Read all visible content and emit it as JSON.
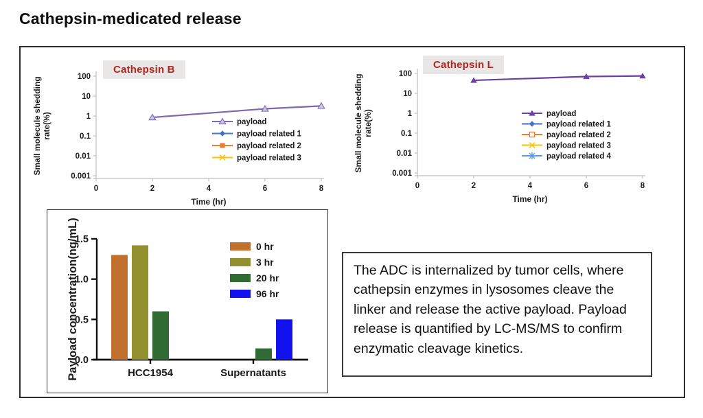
{
  "title": "Cathepsin-medicated release",
  "description": "The ADC is internalized by tumor cells, where cathepsin enzymes in lysosomes cleave the linker and release the active payload. Payload release is quantified by LC-MS/MS to confirm enzymatic cleavage kinetics.",
  "colors": {
    "chart_title_red": "#b3251e",
    "chart_title_bg": "#e8e7e6",
    "axis_gray": "#bfbfbf",
    "ink": "#1a1a1a"
  },
  "chart_data": [
    {
      "type": "line",
      "title": "Cathepsin B",
      "title_color": "#b3251e",
      "xlabel": "Time (hr)",
      "ylabel_line1": "Small molecule shedding",
      "ylabel_line2": "rate(%)",
      "y_scale": "log",
      "y_ticks": [
        100,
        10,
        1,
        0.1,
        0.01,
        0.001
      ],
      "x_ticks": [
        0,
        2,
        4,
        6,
        8
      ],
      "xlim": [
        0,
        8
      ],
      "legend_position": "center-right",
      "series": [
        {
          "name": "payload",
          "color": "#7c68ae",
          "marker": "triangle-open",
          "x": [
            2,
            6,
            8
          ],
          "y": [
            0.85,
            2.3,
            3.2
          ]
        },
        {
          "name": "payload related 1",
          "color": "#4472c4",
          "marker": "diamond",
          "x": [],
          "y": []
        },
        {
          "name": "payload related 2",
          "color": "#ed7d31",
          "marker": "square",
          "x": [],
          "y": []
        },
        {
          "name": "payload related 3",
          "color": "#ffc000",
          "marker": "x",
          "x": [],
          "y": []
        }
      ]
    },
    {
      "type": "line",
      "title": "Cathepsin L",
      "title_color": "#b3251e",
      "xlabel": "Time (hr)",
      "ylabel_line1": "Small molecule shedding",
      "ylabel_line2": "rate(%)",
      "y_scale": "log",
      "y_ticks": [
        100,
        10,
        1,
        0.1,
        0.01,
        0.001
      ],
      "x_ticks": [
        0,
        2,
        4,
        6,
        8
      ],
      "xlim": [
        0,
        8
      ],
      "legend_position": "center-right",
      "series": [
        {
          "name": "payload",
          "color": "#6b3fa3",
          "marker": "triangle",
          "x": [
            2,
            6,
            8
          ],
          "y": [
            45,
            70,
            75
          ]
        },
        {
          "name": "payload related 1",
          "color": "#4472c4",
          "marker": "diamond",
          "x": [],
          "y": []
        },
        {
          "name": "payload related 2",
          "color": "#ed7d31",
          "marker": "square-open",
          "x": [],
          "y": []
        },
        {
          "name": "payload related 3",
          "color": "#ffc000",
          "marker": "x",
          "x": [],
          "y": []
        },
        {
          "name": "payload related 4",
          "color": "#5b9bd5",
          "marker": "asterisk",
          "x": [],
          "y": []
        }
      ]
    },
    {
      "type": "bar",
      "ylabel": "Payload concentration(ng/mL)",
      "categories": [
        "HCC1954",
        "Supernatants"
      ],
      "y_ticks": [
        0.0,
        0.5,
        1.0,
        1.5
      ],
      "ylim": [
        0,
        1.5
      ],
      "legend_position": "top-right",
      "series": [
        {
          "name": "0 hr",
          "color": "#c2702d",
          "values": [
            1.3,
            0
          ]
        },
        {
          "name": "3 hr",
          "color": "#93902f",
          "values": [
            1.42,
            0
          ]
        },
        {
          "name": "20 hr",
          "color": "#2f6b33",
          "values": [
            0.6,
            0.14
          ]
        },
        {
          "name": "96 hr",
          "color": "#1212ee",
          "values": [
            0,
            0.5
          ]
        }
      ]
    }
  ]
}
